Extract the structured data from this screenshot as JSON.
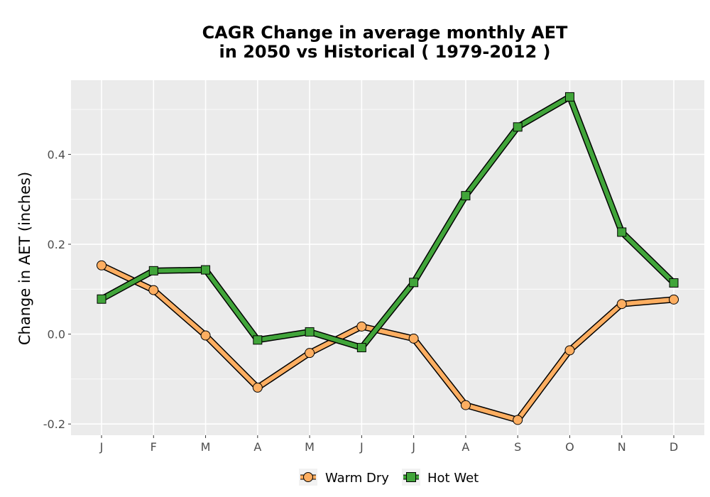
{
  "chart_data": {
    "type": "line",
    "title_line1": "CAGR  Change in average monthly AET",
    "title_line2": "in 2050 vs Historical ( 1979-2012 )",
    "xlabel": "",
    "ylabel": "Change in AET (inches)",
    "categories": [
      "J",
      "F",
      "M",
      "A",
      "M",
      "J",
      "J",
      "A",
      "S",
      "O",
      "N",
      "D"
    ],
    "ylim": [
      -0.225,
      0.565
    ],
    "yticks": [
      -0.2,
      0.0,
      0.2,
      0.4
    ],
    "ytick_labels": [
      "-0.2",
      "0.0",
      "0.2",
      "0.4"
    ],
    "grid": true,
    "legend_position": "bottom",
    "series": [
      {
        "name": "Warm Dry",
        "color": "#fdae61",
        "marker": "circle",
        "values": [
          0.153,
          0.098,
          -0.003,
          -0.119,
          -0.042,
          0.017,
          -0.01,
          -0.158,
          -0.191,
          -0.036,
          0.067,
          0.077
        ]
      },
      {
        "name": "Hot Wet",
        "color": "#41a53a",
        "marker": "square",
        "values": [
          0.078,
          0.141,
          0.143,
          -0.013,
          0.005,
          -0.03,
          0.115,
          0.308,
          0.461,
          0.528,
          0.227,
          0.114
        ]
      }
    ]
  }
}
